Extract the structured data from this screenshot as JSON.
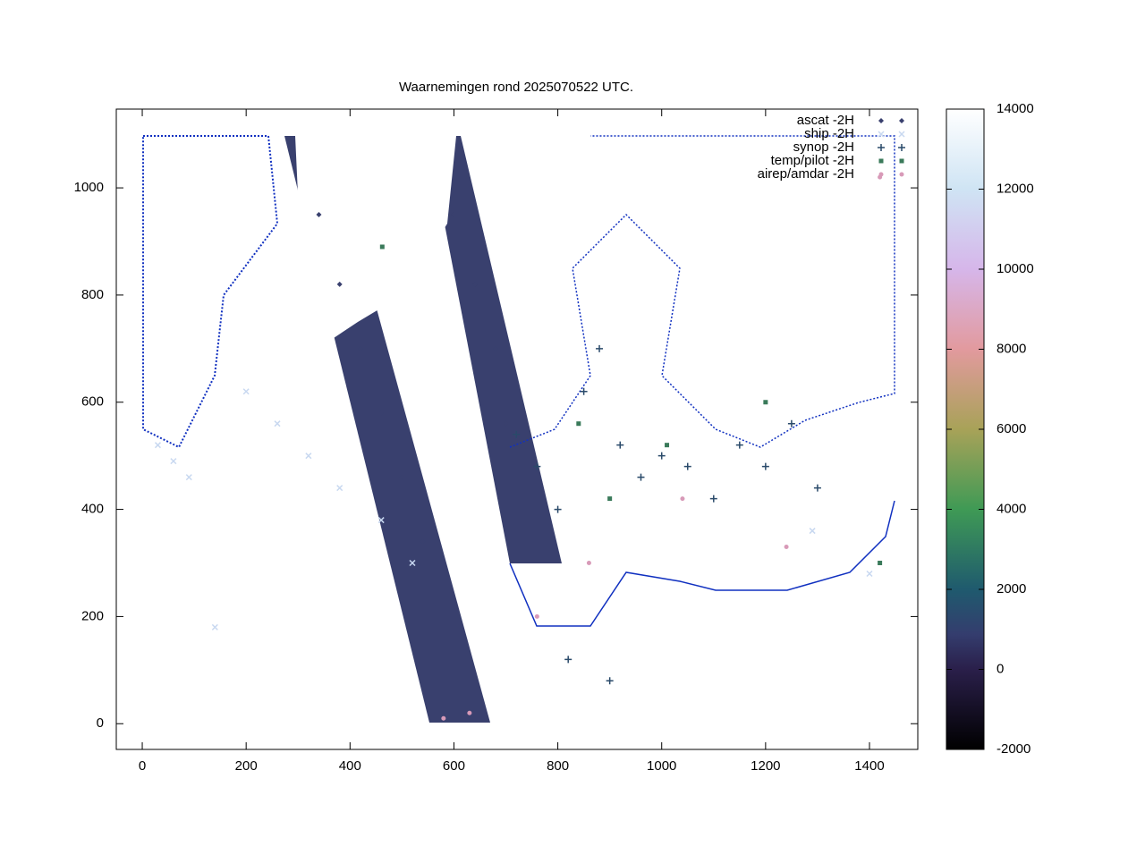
{
  "chart_data": {
    "type": "scatter",
    "title": "Waarnemingen rond 2025070522 UTC.",
    "xlim": [
      -50,
      1493
    ],
    "ylim": [
      -48,
      1147
    ],
    "xticks": [
      0,
      200,
      400,
      600,
      800,
      1000,
      1200,
      1400
    ],
    "yticks": [
      0,
      200,
      400,
      600,
      800,
      1000
    ],
    "cblim": [
      -2000,
      14000
    ],
    "cbticks": [
      -2000,
      0,
      2000,
      4000,
      6000,
      8000,
      10000,
      12000,
      14000
    ],
    "legend": "upper right",
    "series": [
      {
        "name": "ascat -2H",
        "color": "#39406e",
        "marker": "diamond",
        "x": [
          340,
          380,
          420,
          460,
          500,
          540,
          560,
          600,
          640,
          680,
          700
        ],
        "y": [
          950,
          820,
          700,
          580,
          460,
          340,
          220,
          950,
          820,
          700,
          560
        ]
      },
      {
        "name": "ship -2H",
        "color": "#c8d8f0",
        "marker": "cross",
        "x": [
          30,
          60,
          90,
          140,
          200,
          260,
          320,
          380,
          460,
          520,
          1290,
          1400
        ],
        "y": [
          520,
          490,
          460,
          180,
          620,
          560,
          500,
          440,
          380,
          300,
          360,
          280
        ]
      },
      {
        "name": "synop -2H",
        "color": "#2a4a6a",
        "marker": "plus",
        "x": [
          720,
          760,
          800,
          850,
          880,
          920,
          960,
          1000,
          1050,
          1100,
          1150,
          1200,
          1250,
          1300,
          820,
          900
        ],
        "y": [
          540,
          480,
          400,
          620,
          700,
          520,
          460,
          500,
          480,
          420,
          520,
          480,
          560,
          440,
          120,
          80
        ]
      },
      {
        "name": "temp/pilot -2H",
        "color": "#3a7a5a",
        "marker": "square",
        "x": [
          462,
          840,
          900,
          1010,
          1200,
          1420
        ],
        "y": [
          890,
          560,
          420,
          520,
          600,
          300
        ]
      },
      {
        "name": "airep/amdar -2H",
        "color": "#d89ab8",
        "marker": "dot",
        "x": [
          580,
          630,
          760,
          860,
          1040,
          1240,
          1420
        ],
        "y": [
          10,
          20,
          200,
          300,
          420,
          330,
          1020
        ]
      }
    ]
  }
}
